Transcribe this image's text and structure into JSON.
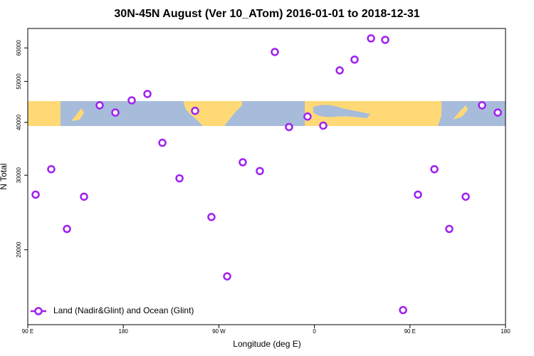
{
  "chart_data": {
    "type": "scatter",
    "title": "30N-45N August (Ver 10_ATom)   2016-01-01 to 2018-12-31",
    "xlabel": "Longitude (deg E)",
    "ylabel": "N Total",
    "xlim": [
      90,
      540
    ],
    "xticks": [
      {
        "value": 90,
        "label": "90 E"
      },
      180,
      {
        "value": 270,
        "label": "90 W"
      },
      {
        "value": 360,
        "label": "0"
      },
      {
        "value": 450,
        "label": "90 E"
      },
      {
        "value": 540,
        "label": "180"
      }
    ],
    "ylim": [
      13300,
      66700
    ],
    "ylog": true,
    "yticks": [
      20000,
      30000,
      40000,
      50000,
      60000
    ],
    "legend": "lower left",
    "series": [
      {
        "name": "Land (Nadir&Glint) and Ocean (Glint)",
        "color": "#a020f0",
        "x": [
          97.4,
          112.1,
          126.9,
          143,
          157.7,
          172.5,
          187.9,
          202.7,
          216.8,
          232.9,
          247.6,
          263,
          277.8,
          292.5,
          308.6,
          322.7,
          336.1,
          353.5,
          368.3,
          383.8,
          397.8,
          413.3,
          426.7,
          443.5,
          457.5,
          473,
          487,
          502.5,
          517.9,
          532.7
        ],
        "values": [
          27000,
          31000,
          22400,
          26700,
          43900,
          42200,
          45100,
          46700,
          35800,
          29500,
          42600,
          23900,
          17300,
          32200,
          30700,
          58700,
          39000,
          41300,
          39300,
          53100,
          56300,
          63200,
          62700,
          14400,
          27000,
          31000,
          22400,
          26700,
          43900,
          42200
        ]
      }
    ]
  }
}
